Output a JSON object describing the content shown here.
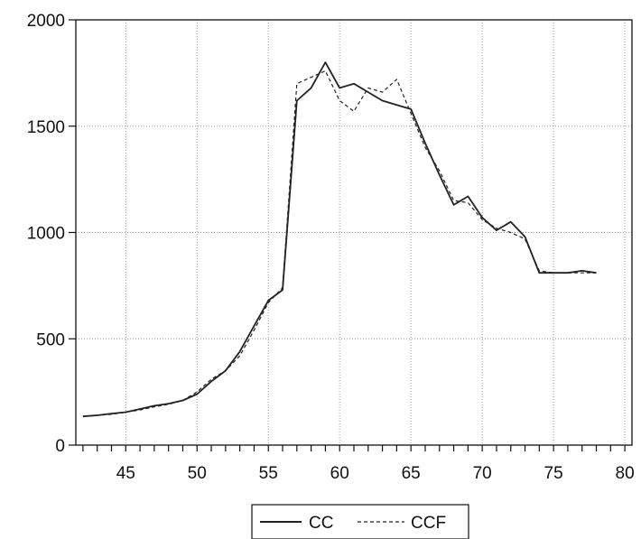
{
  "chart_data": {
    "type": "line",
    "title": "",
    "xlabel": "",
    "ylabel": "",
    "xlim": [
      41.5,
      80.5
    ],
    "ylim": [
      0,
      2000
    ],
    "x_ticks": [
      45,
      50,
      55,
      60,
      65,
      70,
      75,
      80
    ],
    "y_ticks": [
      0,
      500,
      1000,
      1500,
      2000
    ],
    "x_tick_labels": [
      "45",
      "50",
      "55",
      "60",
      "65",
      "70",
      "75",
      "80"
    ],
    "y_tick_labels": [
      "0",
      "500",
      "1000",
      "1500",
      "2000"
    ],
    "grid": true,
    "legend_position": "bottom",
    "x": [
      42,
      43,
      44,
      45,
      46,
      47,
      48,
      49,
      50,
      51,
      52,
      53,
      54,
      55,
      56,
      57,
      58,
      59,
      60,
      61,
      62,
      63,
      64,
      65,
      66,
      67,
      68,
      69,
      70,
      71,
      72,
      73,
      74,
      75,
      76,
      77,
      78
    ],
    "series": [
      {
        "name": "CC",
        "style": "solid",
        "color": "#222222",
        "values": [
          135,
          140,
          148,
          155,
          170,
          185,
          195,
          210,
          240,
          300,
          350,
          440,
          560,
          680,
          730,
          1620,
          1680,
          1800,
          1680,
          1700,
          1660,
          1620,
          1600,
          1580,
          1420,
          1270,
          1130,
          1170,
          1070,
          1010,
          1050,
          980,
          810,
          810,
          810,
          820,
          810
        ]
      },
      {
        "name": "CCF",
        "style": "dashed",
        "color": "#222222",
        "values": [
          135,
          140,
          145,
          155,
          165,
          180,
          192,
          210,
          250,
          310,
          350,
          420,
          540,
          670,
          740,
          1700,
          1730,
          1760,
          1620,
          1570,
          1680,
          1660,
          1720,
          1560,
          1400,
          1290,
          1150,
          1140,
          1060,
          1020,
          1000,
          970,
          820,
          810,
          810,
          810,
          810
        ]
      }
    ]
  }
}
